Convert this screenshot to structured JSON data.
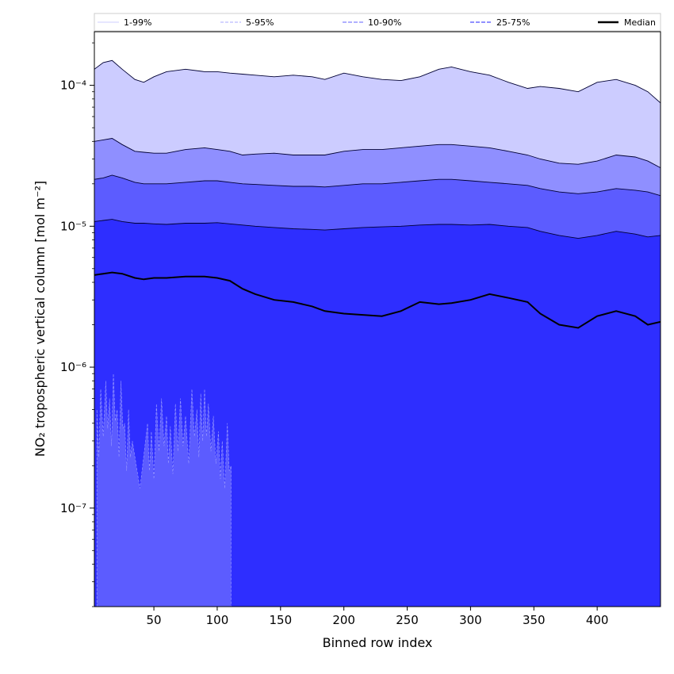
{
  "chart_data": {
    "type": "area",
    "xlabel": "Binned row index",
    "ylabel": "NO₂ tropospheric vertical column [mol m⁻²]",
    "xlim": [
      3,
      450
    ],
    "ylim": [
      2e-08,
      0.00024
    ],
    "y_scale": "log",
    "x_ticks": [
      50,
      100,
      150,
      200,
      250,
      300,
      350,
      400
    ],
    "y_ticks": [
      {
        "value": 1e-07,
        "label": "10⁻⁷"
      },
      {
        "value": 1e-06,
        "label": "10⁻⁶"
      },
      {
        "value": 1e-05,
        "label": "10⁻⁵"
      },
      {
        "value": 0.0001,
        "label": "10⁻⁴"
      }
    ],
    "grid": false,
    "legend_placement": "top, outside plot",
    "legend": [
      {
        "label": "1-99%",
        "style": "thin"
      },
      {
        "label": "5-95%",
        "style": "dashed-light"
      },
      {
        "label": "10-90%",
        "style": "dashed"
      },
      {
        "label": "25-75%",
        "style": "dashed-dark"
      },
      {
        "label": "Median",
        "style": "solid"
      }
    ],
    "x": [
      3,
      10,
      17,
      25,
      35,
      42,
      50,
      60,
      75,
      90,
      100,
      110,
      120,
      130,
      145,
      160,
      175,
      185,
      200,
      215,
      230,
      245,
      260,
      275,
      285,
      300,
      315,
      330,
      345,
      355,
      370,
      385,
      400,
      415,
      430,
      440,
      450
    ],
    "series": [
      {
        "name": "1-99%",
        "band": "upper",
        "values": [
          0.00013,
          0.000145,
          0.00015,
          0.00013,
          0.00011,
          0.000105,
          0.000115,
          0.000125,
          0.00013,
          0.000125,
          0.000125,
          0.000122,
          0.00012,
          0.000118,
          0.000115,
          0.000118,
          0.000115,
          0.00011,
          0.000122,
          0.000115,
          0.00011,
          0.000108,
          0.000115,
          0.00013,
          0.000135,
          0.000125,
          0.000118,
          0.000105,
          9.5e-05,
          9.8e-05,
          9.5e-05,
          9e-05,
          0.000105,
          0.00011,
          0.0001,
          9e-05,
          7.5e-05
        ]
      },
      {
        "name": "5-95%",
        "band": "upper",
        "values": [
          4e-05,
          4.1e-05,
          4.2e-05,
          3.8e-05,
          3.4e-05,
          3.35e-05,
          3.3e-05,
          3.3e-05,
          3.5e-05,
          3.6e-05,
          3.5e-05,
          3.4e-05,
          3.2e-05,
          3.25e-05,
          3.3e-05,
          3.2e-05,
          3.2e-05,
          3.2e-05,
          3.4e-05,
          3.5e-05,
          3.5e-05,
          3.6e-05,
          3.7e-05,
          3.8e-05,
          3.8e-05,
          3.7e-05,
          3.6e-05,
          3.4e-05,
          3.2e-05,
          3e-05,
          2.8e-05,
          2.75e-05,
          2.9e-05,
          3.2e-05,
          3.1e-05,
          2.9e-05,
          2.6e-05
        ]
      },
      {
        "name": "10-90%",
        "band": "upper",
        "values": [
          2.15e-05,
          2.2e-05,
          2.3e-05,
          2.2e-05,
          2.05e-05,
          2e-05,
          2e-05,
          2e-05,
          2.05e-05,
          2.1e-05,
          2.1e-05,
          2.05e-05,
          2e-05,
          1.98e-05,
          1.95e-05,
          1.92e-05,
          1.92e-05,
          1.9e-05,
          1.95e-05,
          2e-05,
          2e-05,
          2.05e-05,
          2.1e-05,
          2.15e-05,
          2.15e-05,
          2.1e-05,
          2.05e-05,
          2e-05,
          1.95e-05,
          1.85e-05,
          1.75e-05,
          1.7e-05,
          1.75e-05,
          1.85e-05,
          1.8e-05,
          1.75e-05,
          1.65e-05
        ]
      },
      {
        "name": "25-75%",
        "band": "upper",
        "values": [
          1.08e-05,
          1.1e-05,
          1.12e-05,
          1.08e-05,
          1.05e-05,
          1.05e-05,
          1.04e-05,
          1.03e-05,
          1.05e-05,
          1.05e-05,
          1.06e-05,
          1.04e-05,
          1.02e-05,
          1e-05,
          9.8e-06,
          9.6e-06,
          9.5e-06,
          9.4e-06,
          9.6e-06,
          9.8e-06,
          9.9e-06,
          1e-05,
          1.02e-05,
          1.03e-05,
          1.03e-05,
          1.02e-05,
          1.03e-05,
          1e-05,
          9.8e-06,
          9.2e-06,
          8.6e-06,
          8.2e-06,
          8.6e-06,
          9.2e-06,
          8.8e-06,
          8.4e-06,
          8.6e-06
        ]
      },
      {
        "name": "Median",
        "values": [
          4.5e-06,
          4.6e-06,
          4.7e-06,
          4.6e-06,
          4.3e-06,
          4.2e-06,
          4.3e-06,
          4.3e-06,
          4.4e-06,
          4.4e-06,
          4.3e-06,
          4.1e-06,
          3.6e-06,
          3.3e-06,
          3e-06,
          2.9e-06,
          2.7e-06,
          2.5e-06,
          2.4e-06,
          2.35e-06,
          2.3e-06,
          2.5e-06,
          2.9e-06,
          2.8e-06,
          2.85e-06,
          3e-06,
          3.3e-06,
          3.1e-06,
          2.9e-06,
          2.4e-06,
          2e-06,
          1.9e-06,
          2.3e-06,
          2.5e-06,
          2.3e-06,
          2e-06,
          2.1e-06
        ]
      }
    ],
    "lower_percentile_spikes": {
      "x": [
        5,
        8,
        12,
        15,
        18,
        21,
        24,
        27,
        30,
        33,
        45,
        48,
        52,
        56,
        60,
        63,
        67,
        71,
        75,
        80,
        84,
        87,
        90,
        93,
        97,
        101,
        104,
        108,
        111
      ],
      "values": [
        5e-07,
        7e-07,
        8e-07,
        6e-07,
        9e-07,
        5e-07,
        8e-07,
        4e-07,
        5e-07,
        3e-07,
        4e-07,
        3.5e-07,
        5.5e-07,
        6e-07,
        4.5e-07,
        3.8e-07,
        5.5e-07,
        6e-07,
        4.5e-07,
        7e-07,
        5e-07,
        6.5e-07,
        7e-07,
        5.5e-07,
        4.5e-07,
        3.5e-07,
        3e-07,
        4e-07,
        2e-07
      ]
    },
    "colors": {
      "band_1_99": "#ccccff",
      "band_5_95": "#8f8fff",
      "band_10_90": "#5c5cff",
      "band_25_75": "#2e2eff",
      "median": "#000000"
    }
  }
}
